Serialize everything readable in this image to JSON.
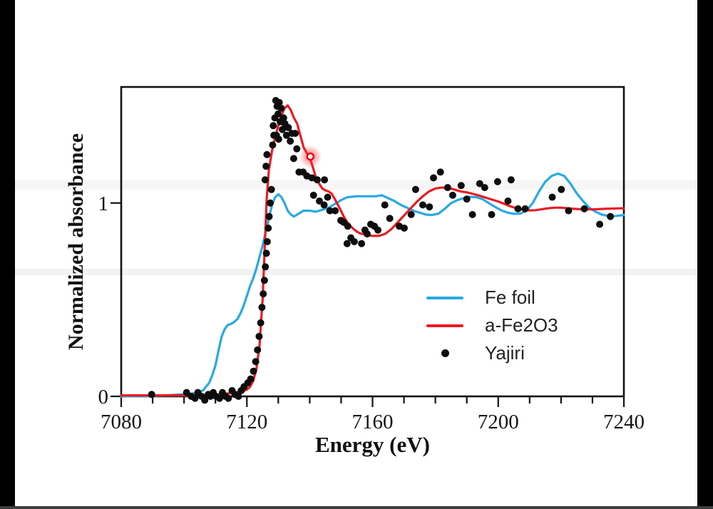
{
  "frame": {
    "letterbox_color": "#000000",
    "bottom_line_color": "#3f3f3f",
    "background": "#ffffff"
  },
  "chart_data": {
    "type": "line+scatter",
    "title": "",
    "xlabel": "Energy (eV)",
    "ylabel": "Normalized absorbance",
    "xlim": [
      7080,
      7240
    ],
    "ylim": [
      0,
      1.6
    ],
    "x_major_ticks": [
      7080,
      7120,
      7160,
      7200,
      7240
    ],
    "x_minor_step": 10,
    "y_ticks": [
      0,
      1
    ],
    "grid": false,
    "legend_position": "inside-lower-right",
    "axis_color": "#121212",
    "series": [
      {
        "name": "Fe foil",
        "type": "line",
        "color": "#29A9E2",
        "points": [
          [
            7080,
            0.0
          ],
          [
            7088,
            0.002
          ],
          [
            7094,
            0.005
          ],
          [
            7099,
            0.01
          ],
          [
            7103,
            0.015
          ],
          [
            7106,
            0.03
          ],
          [
            7108,
            0.07
          ],
          [
            7109,
            0.11
          ],
          [
            7110,
            0.16
          ],
          [
            7111,
            0.24
          ],
          [
            7112,
            0.31
          ],
          [
            7113,
            0.35
          ],
          [
            7114,
            0.37
          ],
          [
            7115,
            0.375
          ],
          [
            7116,
            0.385
          ],
          [
            7117,
            0.4
          ],
          [
            7118,
            0.43
          ],
          [
            7119,
            0.47
          ],
          [
            7120,
            0.52
          ],
          [
            7121,
            0.57
          ],
          [
            7122,
            0.61
          ],
          [
            7123,
            0.66
          ],
          [
            7124,
            0.72
          ],
          [
            7125,
            0.78
          ],
          [
            7126,
            0.85
          ],
          [
            7127,
            0.92
          ],
          [
            7128,
            0.99
          ],
          [
            7129,
            1.03
          ],
          [
            7130,
            1.045
          ],
          [
            7131,
            1.03
          ],
          [
            7132,
            1.0
          ],
          [
            7133,
            0.96
          ],
          [
            7134,
            0.94
          ],
          [
            7135,
            0.93
          ],
          [
            7136,
            0.94
          ],
          [
            7137,
            0.95
          ],
          [
            7138,
            0.96
          ],
          [
            7140,
            0.96
          ],
          [
            7142,
            0.955
          ],
          [
            7144,
            0.965
          ],
          [
            7146,
            0.975
          ],
          [
            7148,
            0.995
          ],
          [
            7150,
            1.015
          ],
          [
            7152,
            1.03
          ],
          [
            7155,
            1.035
          ],
          [
            7158,
            1.035
          ],
          [
            7161,
            1.035
          ],
          [
            7163,
            1.04
          ],
          [
            7165,
            1.025
          ],
          [
            7167,
            1.01
          ],
          [
            7169,
            0.99
          ],
          [
            7171,
            0.975
          ],
          [
            7173,
            0.96
          ],
          [
            7175,
            0.95
          ],
          [
            7177,
            0.94
          ],
          [
            7179,
            0.938
          ],
          [
            7181,
            0.945
          ],
          [
            7183,
            0.97
          ],
          [
            7185,
            1.0
          ],
          [
            7187,
            1.015
          ],
          [
            7189,
            1.025
          ],
          [
            7191,
            1.032
          ],
          [
            7193,
            1.03
          ],
          [
            7195,
            1.02
          ],
          [
            7197,
            1.0
          ],
          [
            7199,
            0.98
          ],
          [
            7201,
            0.962
          ],
          [
            7203,
            0.95
          ],
          [
            7205,
            0.944
          ],
          [
            7207,
            0.945
          ],
          [
            7209,
            0.96
          ],
          [
            7211,
            1.0
          ],
          [
            7213,
            1.06
          ],
          [
            7215,
            1.11
          ],
          [
            7217,
            1.14
          ],
          [
            7219,
            1.152
          ],
          [
            7221,
            1.14
          ],
          [
            7223,
            1.1
          ],
          [
            7225,
            1.05
          ],
          [
            7227,
            1.01
          ],
          [
            7229,
            0.975
          ],
          [
            7231,
            0.955
          ],
          [
            7233,
            0.94
          ],
          [
            7235,
            0.933
          ],
          [
            7237,
            0.932
          ],
          [
            7239,
            0.936
          ],
          [
            7240,
            0.938
          ]
        ]
      },
      {
        "name": "a-Fe2O3",
        "type": "line",
        "color": "#EA1B23",
        "points": [
          [
            7080,
            0.005
          ],
          [
            7100,
            0.005
          ],
          [
            7106,
            0.006
          ],
          [
            7110,
            0.008
          ],
          [
            7114,
            0.015
          ],
          [
            7117,
            0.022
          ],
          [
            7119,
            0.028
          ],
          [
            7120,
            0.035
          ],
          [
            7121,
            0.05
          ],
          [
            7122,
            0.08
          ],
          [
            7123,
            0.14
          ],
          [
            7124,
            0.26
          ],
          [
            7125,
            0.5
          ],
          [
            7125.7,
            0.78
          ],
          [
            7126.3,
            1.02
          ],
          [
            7127,
            1.17
          ],
          [
            7128,
            1.27
          ],
          [
            7129,
            1.34
          ],
          [
            7130,
            1.4
          ],
          [
            7131,
            1.455
          ],
          [
            7132,
            1.49
          ],
          [
            7133,
            1.505
          ],
          [
            7134,
            1.48
          ],
          [
            7135,
            1.44
          ],
          [
            7136,
            1.41
          ],
          [
            7137,
            1.35
          ],
          [
            7138,
            1.29
          ],
          [
            7139,
            1.26
          ],
          [
            7140,
            1.235
          ],
          [
            7141,
            1.185
          ],
          [
            7142,
            1.13
          ],
          [
            7143,
            1.1
          ],
          [
            7144,
            1.075
          ],
          [
            7145,
            1.065
          ],
          [
            7146,
            1.06
          ],
          [
            7147,
            1.048
          ],
          [
            7148,
            1.02
          ],
          [
            7149,
            0.99
          ],
          [
            7150,
            0.958
          ],
          [
            7151,
            0.925
          ],
          [
            7152,
            0.9
          ],
          [
            7153,
            0.88
          ],
          [
            7154,
            0.865
          ],
          [
            7155,
            0.852
          ],
          [
            7156,
            0.843
          ],
          [
            7158,
            0.835
          ],
          [
            7160,
            0.83
          ],
          [
            7162,
            0.83
          ],
          [
            7164,
            0.84
          ],
          [
            7166,
            0.865
          ],
          [
            7168,
            0.9
          ],
          [
            7170,
            0.935
          ],
          [
            7172,
            0.97
          ],
          [
            7174,
            1.005
          ],
          [
            7176,
            1.035
          ],
          [
            7178,
            1.06
          ],
          [
            7180,
            1.075
          ],
          [
            7182,
            1.08
          ],
          [
            7184,
            1.078
          ],
          [
            7186,
            1.07
          ],
          [
            7188,
            1.06
          ],
          [
            7190,
            1.055
          ],
          [
            7192,
            1.047
          ],
          [
            7194,
            1.038
          ],
          [
            7196,
            1.028
          ],
          [
            7198,
            1.018
          ],
          [
            7200,
            1.008
          ],
          [
            7202,
            0.995
          ],
          [
            7204,
            0.982
          ],
          [
            7206,
            0.972
          ],
          [
            7208,
            0.965
          ],
          [
            7210,
            0.962
          ],
          [
            7212,
            0.963
          ],
          [
            7214,
            0.968
          ],
          [
            7216,
            0.973
          ],
          [
            7218,
            0.976
          ],
          [
            7220,
            0.976
          ],
          [
            7222,
            0.973
          ],
          [
            7224,
            0.97
          ],
          [
            7226,
            0.968
          ],
          [
            7228,
            0.967
          ],
          [
            7230,
            0.967
          ],
          [
            7232,
            0.968
          ],
          [
            7234,
            0.97
          ],
          [
            7236,
            0.971
          ],
          [
            7238,
            0.972
          ],
          [
            7240,
            0.973
          ]
        ]
      },
      {
        "name": "Yajiri",
        "type": "scatter",
        "color": "#0D0D0D",
        "marker_radius": 5,
        "points": [
          [
            7089.7,
            0.01
          ],
          [
            7100.8,
            0.02
          ],
          [
            7102.3,
            0.0
          ],
          [
            7103.5,
            -0.01
          ],
          [
            7104.4,
            0.02
          ],
          [
            7105.6,
            0.0
          ],
          [
            7106.6,
            -0.02
          ],
          [
            7107.7,
            0.01
          ],
          [
            7108.4,
            0.0
          ],
          [
            7109.3,
            0.02
          ],
          [
            7110.2,
            0.0
          ],
          [
            7111.3,
            -0.01
          ],
          [
            7112.2,
            0.02
          ],
          [
            7113.2,
            0.0
          ],
          [
            7114.1,
            -0.01
          ],
          [
            7115.3,
            0.03
          ],
          [
            7116.2,
            0.01
          ],
          [
            7117.3,
            0.0
          ],
          [
            7118.2,
            0.03
          ],
          [
            7119.1,
            0.05
          ],
          [
            7120.3,
            0.07
          ],
          [
            7121.2,
            0.09
          ],
          [
            7122.1,
            0.13
          ],
          [
            7122.8,
            0.18
          ],
          [
            7123.4,
            0.24
          ],
          [
            7123.9,
            0.31
          ],
          [
            7124.4,
            0.38
          ],
          [
            7124.8,
            0.46
          ],
          [
            7125.2,
            0.53
          ],
          [
            7125.6,
            0.6
          ],
          [
            7125.9,
            0.67
          ],
          [
            7126.2,
            0.74
          ],
          [
            7126.5,
            0.8
          ],
          [
            7126.8,
            0.87
          ],
          [
            7127.1,
            0.93
          ],
          [
            7127.4,
            1.0
          ],
          [
            7127.8,
            1.07
          ],
          [
            7125.8,
            1.12
          ],
          [
            7126.1,
            1.19
          ],
          [
            7126.4,
            1.25
          ],
          [
            7128.2,
            1.3
          ],
          [
            7128.4,
            1.4
          ],
          [
            7128.6,
            1.35
          ],
          [
            7128.9,
            1.44
          ],
          [
            7129.2,
            1.53
          ],
          [
            7129.4,
            1.35
          ],
          [
            7129.6,
            1.5
          ],
          [
            7129.9,
            1.46
          ],
          [
            7130.1,
            1.33
          ],
          [
            7130.3,
            1.52
          ],
          [
            7130.6,
            1.42
          ],
          [
            7130.9,
            1.49
          ],
          [
            7131.3,
            1.38
          ],
          [
            7131.7,
            1.44
          ],
          [
            7132.1,
            1.41
          ],
          [
            7132.6,
            1.35
          ],
          [
            7133.2,
            1.39
          ],
          [
            7133.8,
            1.32
          ],
          [
            7134.3,
            1.36
          ],
          [
            7134.9,
            1.23
          ],
          [
            7135.4,
            1.36
          ],
          [
            7135.9,
            1.28
          ],
          [
            7136.6,
            1.16
          ],
          [
            7137.9,
            1.16
          ],
          [
            7139.1,
            1.14
          ],
          [
            7140.7,
            1.13
          ],
          [
            7142.4,
            1.12
          ],
          [
            7144.7,
            1.12
          ],
          [
            7141.2,
            1.04
          ],
          [
            7143.1,
            1.01
          ],
          [
            7144.6,
            0.99
          ],
          [
            7145.7,
            1.03
          ],
          [
            7146.4,
            0.96
          ],
          [
            7148.1,
            0.96
          ],
          [
            7149.9,
            0.91
          ],
          [
            7150.8,
            0.9
          ],
          [
            7151.9,
            0.79
          ],
          [
            7152.1,
            0.88
          ],
          [
            7153.1,
            0.82
          ],
          [
            7154.2,
            0.8
          ],
          [
            7156.5,
            0.79
          ],
          [
            7157.6,
            0.86
          ],
          [
            7158.3,
            0.84
          ],
          [
            7159.4,
            0.89
          ],
          [
            7160.6,
            0.88
          ],
          [
            7161.7,
            0.86
          ],
          [
            7163.9,
            0.99
          ],
          [
            7165.5,
            0.92
          ],
          [
            7168.5,
            0.88
          ],
          [
            7170.1,
            0.87
          ],
          [
            7172.3,
            0.94
          ],
          [
            7173.7,
            1.07
          ],
          [
            7176.0,
            0.99
          ],
          [
            7178.1,
            0.98
          ],
          [
            7179.4,
            1.13
          ],
          [
            7181.6,
            1.16
          ],
          [
            7183.9,
            1.08
          ],
          [
            7185.5,
            1.04
          ],
          [
            7188.2,
            1.09
          ],
          [
            7190.0,
            1.02
          ],
          [
            7191.8,
            0.94
          ],
          [
            7194.1,
            1.1
          ],
          [
            7195.7,
            1.08
          ],
          [
            7197.9,
            0.94
          ],
          [
            7199.8,
            1.11
          ],
          [
            7203.1,
            1.01
          ],
          [
            7204.1,
            1.12
          ],
          [
            7206.3,
            0.97
          ],
          [
            7208.6,
            0.97
          ],
          [
            7217.2,
            1.03
          ],
          [
            7220.1,
            1.07
          ],
          [
            7222.4,
            0.96
          ],
          [
            7227.4,
            0.97
          ],
          [
            7232.3,
            0.89
          ],
          [
            7235.7,
            0.93
          ]
        ]
      }
    ],
    "annotation": {
      "type": "highlight-ring",
      "x": 7140.2,
      "y": 1.24,
      "ring_color": "#E60012",
      "glow_color": "#FF3333"
    }
  },
  "legend": {
    "items": [
      {
        "label": "Fe foil"
      },
      {
        "label": "a-Fe2O3"
      },
      {
        "label": "Yajiri"
      }
    ]
  }
}
